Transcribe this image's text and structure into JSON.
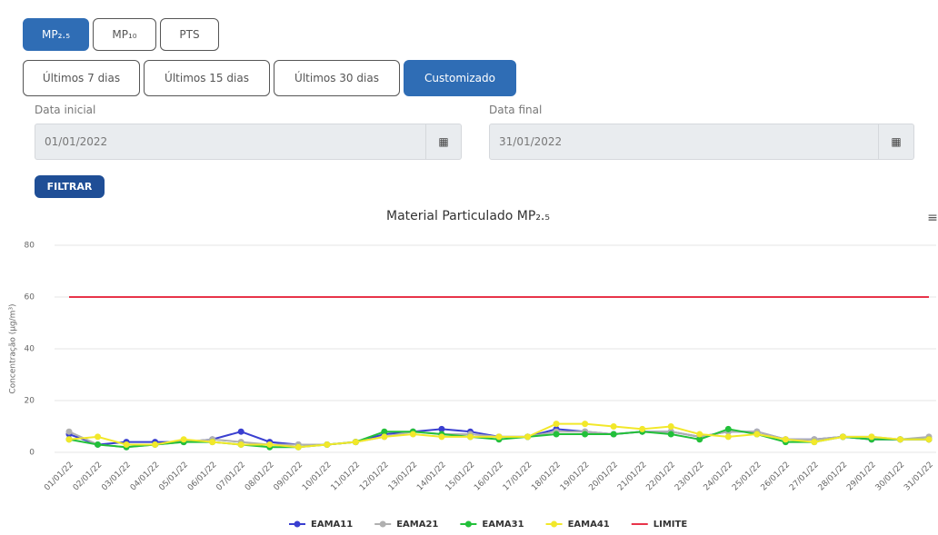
{
  "ui": {
    "pollutant_buttons": [
      "MP₂.₅",
      "MP₁₀",
      "PTS"
    ],
    "period_buttons": [
      "Últimos 7 dias",
      "Últimos 15 dias",
      "Últimos 30 dias",
      "Customizado"
    ],
    "start_label": "Data inicial",
    "start_value": "01/01/2022",
    "end_label": "Data final",
    "end_value": "31/01/2022",
    "filter_button": "FILTRAR"
  },
  "chart_data": {
    "type": "line",
    "title": "Material Particulado MP₂.₅",
    "y_label": "Concentração (µg/m³)",
    "categories": [
      "01/01/22",
      "02/01/22",
      "03/01/22",
      "04/01/22",
      "05/01/22",
      "06/01/22",
      "07/01/22",
      "08/01/22",
      "09/01/22",
      "10/01/22",
      "11/01/22",
      "12/01/22",
      "13/01/22",
      "14/01/22",
      "15/01/22",
      "16/01/22",
      "17/01/22",
      "18/01/22",
      "19/01/22",
      "20/01/22",
      "21/01/22",
      "22/01/22",
      "23/01/22",
      "24/01/22",
      "25/01/22",
      "26/01/22",
      "27/01/22",
      "28/01/22",
      "29/01/22",
      "30/01/22",
      "31/01/22"
    ],
    "series": [
      {
        "name": "EAMA11",
        "color": "#3a3fd0",
        "values": [
          7,
          3,
          4,
          4,
          4,
          5,
          8,
          4,
          3,
          3,
          4,
          7,
          8,
          9,
          8,
          6,
          6,
          9,
          8,
          7,
          8,
          8,
          6,
          8,
          8,
          5,
          5,
          6,
          5,
          5,
          5
        ]
      },
      {
        "name": "EAMA21",
        "color": "#b0b0b0",
        "values": [
          8,
          3,
          2,
          3,
          4,
          5,
          4,
          3,
          3,
          3,
          4,
          6,
          8,
          7,
          7,
          6,
          6,
          8,
          8,
          7,
          8,
          8,
          6,
          8,
          8,
          5,
          5,
          6,
          6,
          5,
          6
        ]
      },
      {
        "name": "EAMA31",
        "color": "#22c03a",
        "values": [
          5,
          3,
          2,
          3,
          4,
          4,
          3,
          2,
          2,
          3,
          4,
          8,
          8,
          7,
          6,
          5,
          6,
          7,
          7,
          7,
          8,
          7,
          5,
          9,
          7,
          4,
          4,
          6,
          5,
          5,
          5
        ]
      },
      {
        "name": "EAMA41",
        "color": "#f2e82a",
        "values": [
          5,
          6,
          3,
          3,
          5,
          4,
          3,
          3,
          2,
          3,
          4,
          6,
          7,
          6,
          6,
          6,
          6,
          11,
          11,
          10,
          9,
          10,
          7,
          6,
          7,
          5,
          4,
          6,
          6,
          5,
          5
        ]
      },
      {
        "name": "LIMITE",
        "color": "#e8344a",
        "marker": false,
        "values": [
          60,
          60,
          60,
          60,
          60,
          60,
          60,
          60,
          60,
          60,
          60,
          60,
          60,
          60,
          60,
          60,
          60,
          60,
          60,
          60,
          60,
          60,
          60,
          60,
          60,
          60,
          60,
          60,
          60,
          60,
          60
        ]
      }
    ],
    "ylim": [
      0,
      80
    ],
    "yticks": [
      0,
      20,
      40,
      60,
      80
    ],
    "grid": true
  }
}
